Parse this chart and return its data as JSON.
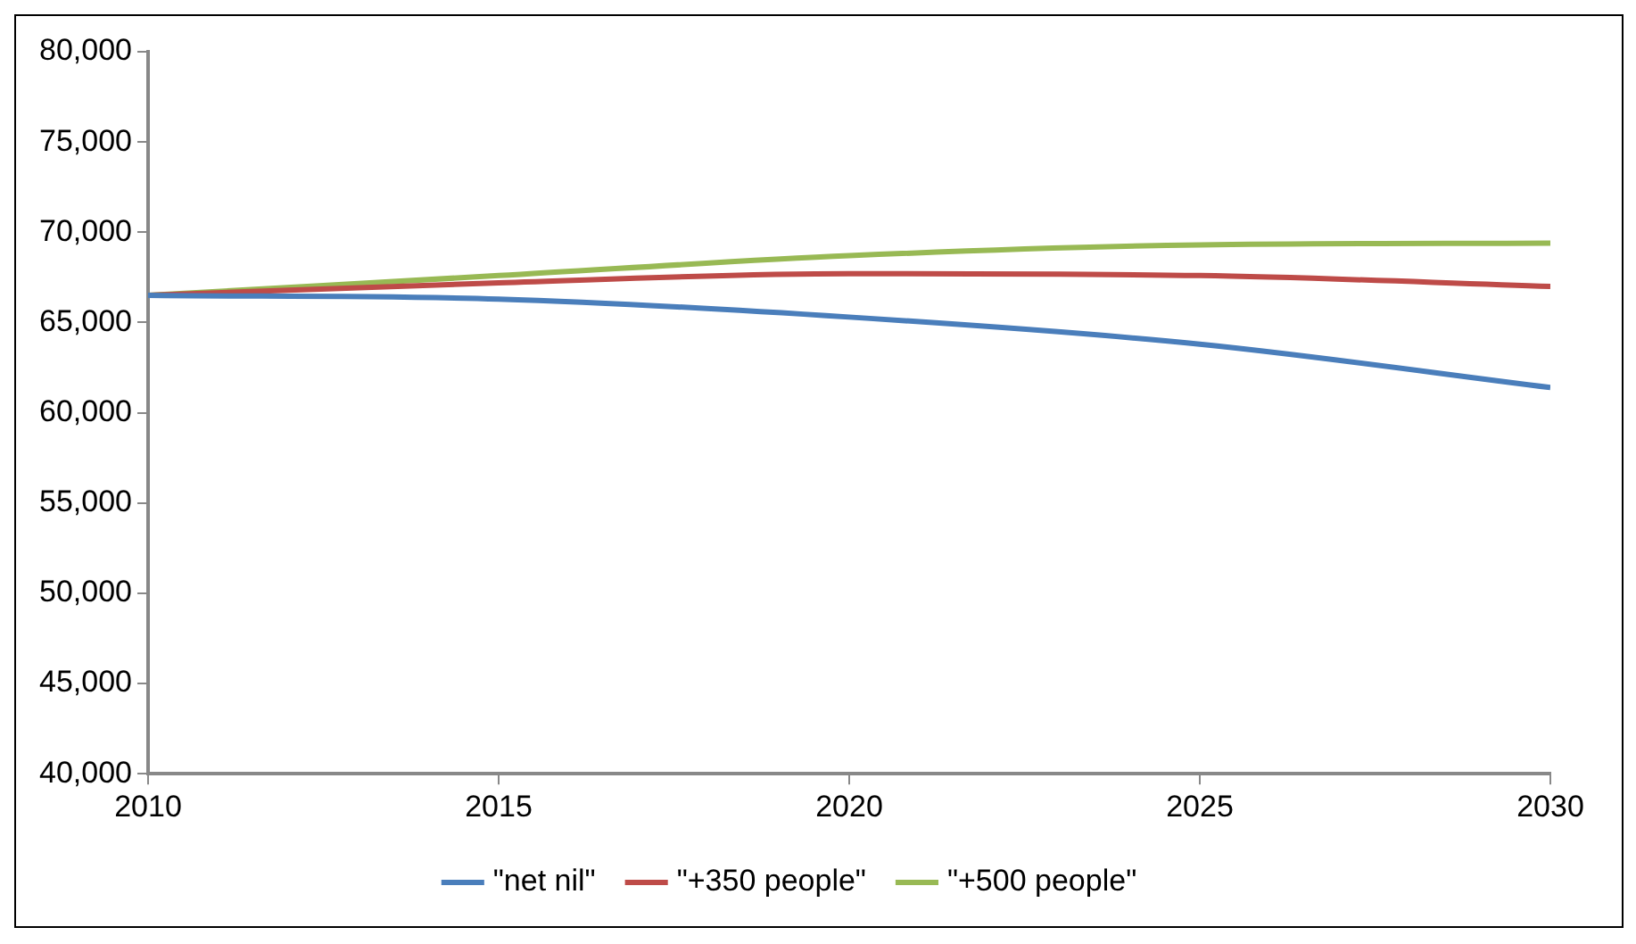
{
  "chart_data": {
    "type": "line",
    "x": [
      2010,
      2015,
      2020,
      2025,
      2030
    ],
    "series": [
      {
        "name": "\"net nil\"",
        "color": "#4a7ebb",
        "values": [
          66500,
          66300,
          65300,
          63800,
          61400
        ]
      },
      {
        "name": "\"+350 people\"",
        "color": "#be4b48",
        "values": [
          66500,
          67200,
          67700,
          67600,
          67000
        ]
      },
      {
        "name": "\"+500 people\"",
        "color": "#98b954",
        "values": [
          66500,
          67600,
          68700,
          69300,
          69400
        ]
      }
    ],
    "xlim": [
      2010,
      2030
    ],
    "xticks": [
      {
        "value": 2010,
        "label": "2010"
      },
      {
        "value": 2015,
        "label": "2015"
      },
      {
        "value": 2020,
        "label": "2020"
      },
      {
        "value": 2025,
        "label": "2025"
      },
      {
        "value": 2030,
        "label": "2030"
      }
    ],
    "ylim": [
      40000,
      80000
    ],
    "yticks": [
      {
        "value": 40000,
        "label": "40,000"
      },
      {
        "value": 45000,
        "label": "45,000"
      },
      {
        "value": 50000,
        "label": "50,000"
      },
      {
        "value": 55000,
        "label": "55,000"
      },
      {
        "value": 60000,
        "label": "60,000"
      },
      {
        "value": 65000,
        "label": "65,000"
      },
      {
        "value": 70000,
        "label": "70,000"
      },
      {
        "value": 75000,
        "label": "75,000"
      },
      {
        "value": 80000,
        "label": "80,000"
      }
    ],
    "grid": false,
    "legend": "bottom",
    "marker": "none",
    "line_style": "solid"
  }
}
